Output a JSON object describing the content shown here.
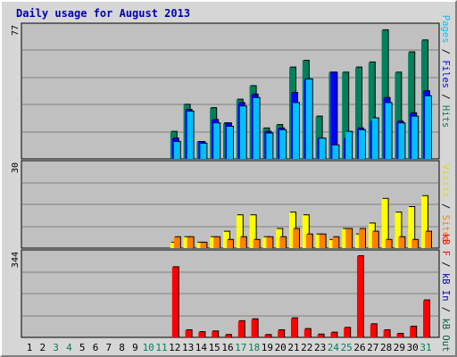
{
  "title": "Daily usage for August 2013",
  "colors": {
    "hits": "#00805c",
    "files": "#0000ff",
    "pages": "#00c0ff",
    "visits": "#ffff00",
    "sites": "#ff8000",
    "kbin": "#0000c0",
    "kbout": "#006040",
    "kbf": "#ff0000",
    "weekend": "#00805c",
    "weekday": "#000000"
  },
  "days": [
    "1",
    "2",
    "3",
    "4",
    "5",
    "6",
    "7",
    "8",
    "9",
    "10",
    "11",
    "12",
    "13",
    "14",
    "15",
    "16",
    "17",
    "18",
    "19",
    "20",
    "21",
    "22",
    "23",
    "24",
    "25",
    "26",
    "27",
    "28",
    "29",
    "30",
    "31"
  ],
  "weekend_days": [
    3,
    4,
    10,
    11,
    17,
    18,
    24,
    25,
    31
  ],
  "legend_top": [
    {
      "text": "Pages",
      "color": "#00c0ff"
    },
    {
      "text": " / ",
      "color": "#000000"
    },
    {
      "text": "Files",
      "color": "#0000ff"
    },
    {
      "text": " / ",
      "color": "#000000"
    },
    {
      "text": "Hits",
      "color": "#00805c"
    }
  ],
  "legend_mid": [
    {
      "text": "Visits",
      "color": "#e8d800"
    },
    {
      "text": " / ",
      "color": "#000000"
    },
    {
      "text": "Sites",
      "color": "#ff8000"
    }
  ],
  "legend_bot": [
    {
      "text": "kB F",
      "color": "#ff0000"
    },
    {
      "text": " / ",
      "color": "#000000"
    },
    {
      "text": "kB In",
      "color": "#0000c0"
    },
    {
      "text": " / ",
      "color": "#000000"
    },
    {
      "text": "kB Out",
      "color": "#006040"
    }
  ],
  "chart_data": [
    {
      "type": "bar",
      "panel": "hits_files_pages",
      "ymax_label": "77",
      "ylim": [
        0,
        77
      ],
      "categories": [
        "1",
        "2",
        "3",
        "4",
        "5",
        "6",
        "7",
        "8",
        "9",
        "10",
        "11",
        "12",
        "13",
        "14",
        "15",
        "16",
        "17",
        "18",
        "19",
        "20",
        "21",
        "22",
        "23",
        "24",
        "25",
        "26",
        "27",
        "28",
        "29",
        "30",
        "31"
      ],
      "series": [
        {
          "name": "Hits",
          "values": [
            0,
            0,
            0,
            0,
            0,
            0,
            0,
            0,
            0,
            0,
            0,
            16,
            32,
            10,
            30,
            21,
            35,
            43,
            18,
            20,
            54,
            58,
            25,
            51,
            51,
            54,
            57,
            76,
            51,
            63,
            70
          ]
        },
        {
          "name": "Files",
          "values": [
            0,
            0,
            0,
            0,
            0,
            0,
            0,
            0,
            0,
            0,
            0,
            12,
            29,
            10,
            23,
            21,
            33,
            38,
            16,
            18,
            39,
            47,
            12,
            51,
            12,
            18,
            22,
            36,
            22,
            27,
            40
          ]
        },
        {
          "name": "Pages",
          "values": [
            0,
            0,
            0,
            0,
            0,
            0,
            0,
            0,
            0,
            0,
            0,
            10,
            28,
            9,
            21,
            19,
            31,
            36,
            15,
            17,
            33,
            47,
            12,
            8,
            16,
            17,
            24,
            33,
            21,
            25,
            37
          ]
        }
      ]
    },
    {
      "type": "bar",
      "panel": "visits_sites",
      "ymax_label": "30",
      "ylim": [
        0,
        30
      ],
      "categories": [
        "1",
        "2",
        "3",
        "4",
        "5",
        "6",
        "7",
        "8",
        "9",
        "10",
        "11",
        "12",
        "13",
        "14",
        "15",
        "16",
        "17",
        "18",
        "19",
        "20",
        "21",
        "22",
        "23",
        "24",
        "25",
        "26",
        "27",
        "28",
        "29",
        "30",
        "31"
      ],
      "series": [
        {
          "name": "Visits",
          "values": [
            0,
            0,
            0,
            0,
            0,
            0,
            0,
            0,
            0,
            0,
            0,
            2,
            4,
            2,
            4,
            6,
            12,
            12,
            4,
            7,
            13,
            12,
            5,
            3,
            7,
            5,
            9,
            18,
            13,
            15,
            19
          ]
        },
        {
          "name": "Sites",
          "values": [
            0,
            0,
            0,
            0,
            0,
            0,
            0,
            0,
            0,
            0,
            0,
            4,
            4,
            2,
            4,
            3,
            4,
            3,
            4,
            4,
            7,
            5,
            5,
            4,
            7,
            7,
            6,
            3,
            4,
            3,
            6
          ]
        }
      ]
    },
    {
      "type": "bar",
      "panel": "kb",
      "ymax_label": "344",
      "ylim": [
        0,
        344
      ],
      "categories": [
        "1",
        "2",
        "3",
        "4",
        "5",
        "6",
        "7",
        "8",
        "9",
        "10",
        "11",
        "12",
        "13",
        "14",
        "15",
        "16",
        "17",
        "18",
        "19",
        "20",
        "21",
        "22",
        "23",
        "24",
        "25",
        "26",
        "27",
        "28",
        "29",
        "30",
        "31"
      ],
      "series": [
        {
          "name": "kB F",
          "values": [
            0,
            0,
            0,
            0,
            0,
            0,
            0,
            0,
            0,
            0,
            0,
            294,
            30,
            22,
            25,
            10,
            68,
            76,
            10,
            30,
            80,
            35,
            12,
            20,
            40,
            340,
            55,
            30,
            15,
            45,
            155
          ]
        }
      ]
    }
  ]
}
